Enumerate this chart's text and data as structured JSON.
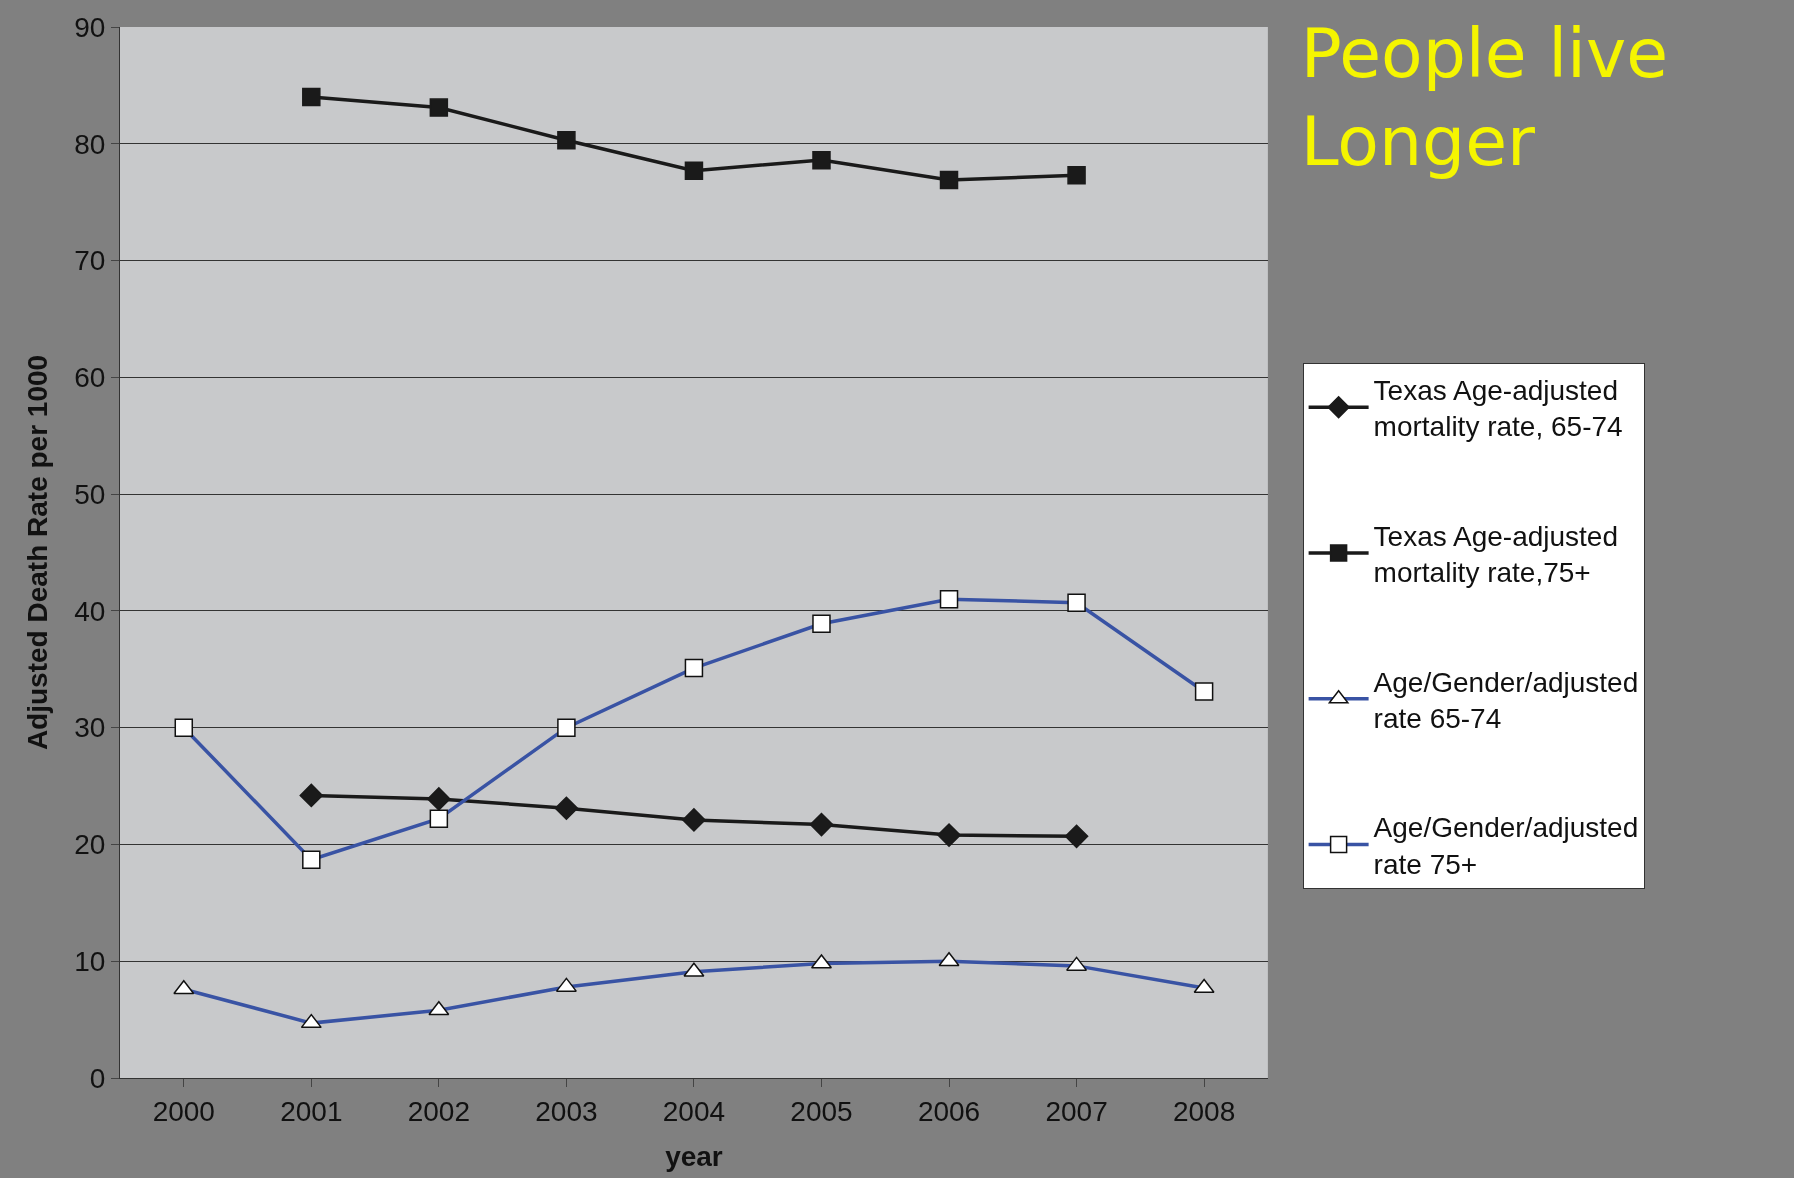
{
  "chart_data": {
    "type": "line",
    "title": "People live Longer",
    "xlabel": "year",
    "ylabel": "Adjusted Death Rate per 1000",
    "categories": [
      "2000",
      "2001",
      "2002",
      "2003",
      "2004",
      "2005",
      "2006",
      "2007",
      "2008"
    ],
    "series": [
      {
        "name": "Texas Age-adjusted mortality rate, 65-74",
        "color": "#1a1a1a",
        "marker": "diamond",
        "values": [
          null,
          24.2,
          23.9,
          23.1,
          22.1,
          21.7,
          20.8,
          20.7,
          null
        ]
      },
      {
        "name": "Texas Age-adjusted mortality rate,75+",
        "color": "#1a1a1a",
        "marker": "square",
        "values": [
          null,
          84,
          83.1,
          80.3,
          77.7,
          78.6,
          76.9,
          77.3,
          null
        ]
      },
      {
        "name": "Age/Gender/adjusted rate 65-74",
        "color": "#3953a4",
        "marker": "triangle",
        "values": [
          7.6,
          4.7,
          5.8,
          7.8,
          9.1,
          9.8,
          10.0,
          9.6,
          7.7
        ]
      },
      {
        "name": "Age/Gender/adjusted rate 75+",
        "color": "#3953a4",
        "marker": "square",
        "values": [
          30.0,
          18.7,
          22.2,
          30.0,
          35.1,
          38.9,
          41.0,
          40.7,
          33.1
        ]
      }
    ],
    "ylim": [
      0,
      90
    ],
    "yticks": [
      0,
      10,
      20,
      30,
      40,
      50,
      60,
      70,
      80,
      90
    ],
    "grid": "y",
    "legend": "right"
  }
}
